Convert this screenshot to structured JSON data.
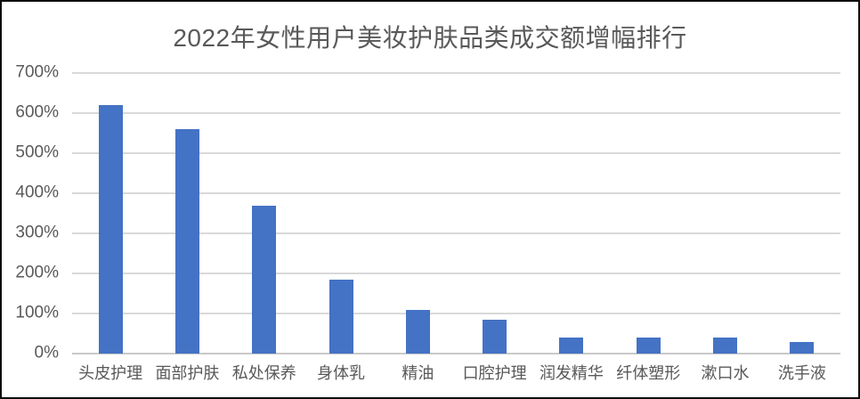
{
  "window": {
    "background": "#FFFFFF",
    "border_color": "#0D0D0D"
  },
  "chart_data": {
    "type": "bar",
    "title": "2022年女性用户美妆护肤品类成交额增幅排行",
    "categories": [
      "头皮护理",
      "面部护肤",
      "私处保养",
      "身体乳",
      "精油",
      "口腔护理",
      "润发精华",
      "纤体塑形",
      "漱口水",
      "洗手液"
    ],
    "values": [
      620,
      560,
      370,
      185,
      110,
      85,
      40,
      40,
      40,
      30
    ],
    "value_unit": "%",
    "xlabel": "",
    "ylabel": "",
    "ylim": [
      0,
      700
    ],
    "ytick_step": 100,
    "ytick_labels": [
      "0%",
      "100%",
      "200%",
      "300%",
      "400%",
      "500%",
      "600%",
      "700%"
    ],
    "grid": "horizontal",
    "legend": "none",
    "colors": {
      "bar": "#4472C4",
      "gridline": "#D9D9D9",
      "baseline": "#C9C9C9",
      "axis_text": "#595959",
      "title_text": "#595959"
    }
  }
}
